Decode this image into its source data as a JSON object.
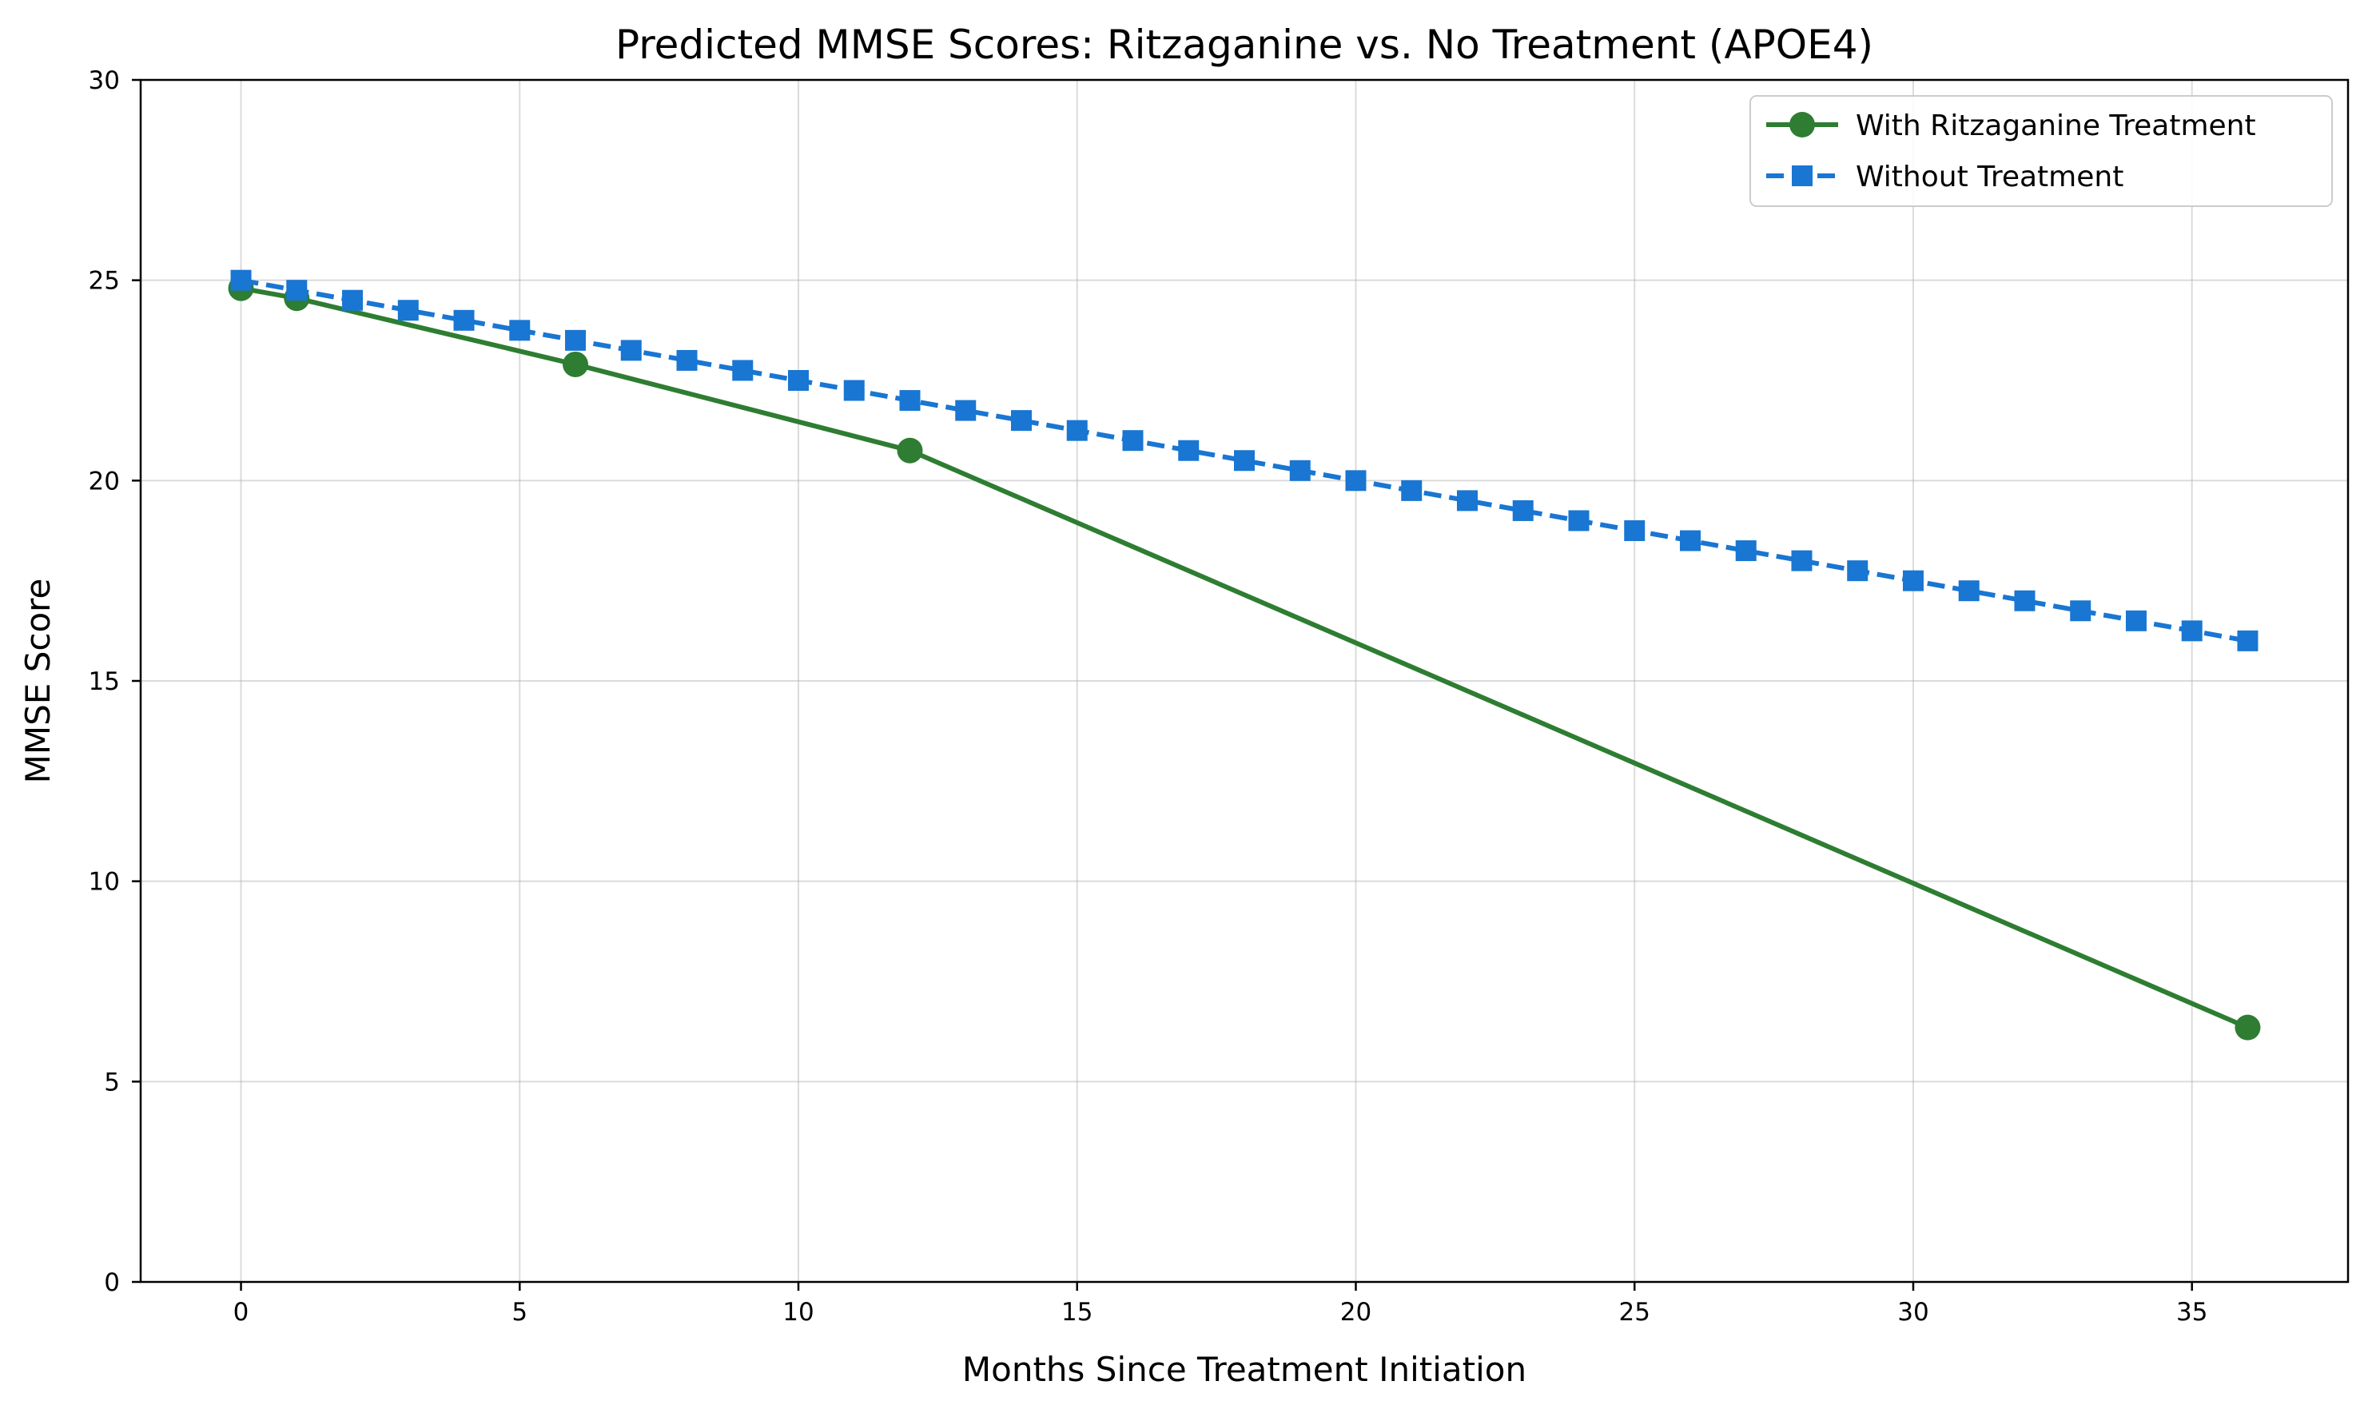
{
  "chart_data": {
    "type": "line",
    "title": "Predicted MMSE Scores: Ritzaganine vs. No Treatment (APOE4)",
    "xlabel": "Months Since Treatment Initiation",
    "ylabel": "MMSE Score",
    "xlim": [
      -1.8,
      37.8
    ],
    "ylim": [
      0,
      30
    ],
    "xticks": [
      0,
      5,
      10,
      15,
      20,
      25,
      30,
      35
    ],
    "yticks": [
      0,
      5,
      10,
      15,
      20,
      25,
      30
    ],
    "grid": true,
    "legend_position": "top-right",
    "series": [
      {
        "name": "With Ritzaganine Treatment",
        "color": "#2e7d32",
        "line_style": "solid",
        "marker": "circle",
        "x": [
          0,
          1,
          6,
          12,
          36
        ],
        "y": [
          24.8,
          24.55,
          22.9,
          20.75,
          6.35
        ]
      },
      {
        "name": "Without Treatment",
        "color": "#1976d2",
        "line_style": "dashed",
        "marker": "square",
        "x": [
          0,
          1,
          2,
          3,
          4,
          5,
          6,
          7,
          8,
          9,
          10,
          11,
          12,
          13,
          14,
          15,
          16,
          17,
          18,
          19,
          20,
          21,
          22,
          23,
          24,
          25,
          26,
          27,
          28,
          29,
          30,
          31,
          32,
          33,
          34,
          35,
          36
        ],
        "y": [
          25,
          24.75,
          24.5,
          24.25,
          24,
          23.75,
          23.5,
          23.25,
          23,
          22.75,
          22.5,
          22.25,
          22,
          21.75,
          21.5,
          21.25,
          21,
          20.75,
          20.5,
          20.25,
          20,
          19.75,
          19.5,
          19.25,
          19,
          18.75,
          18.5,
          18.25,
          18,
          17.75,
          17.5,
          17.25,
          17,
          16.75,
          16.5,
          16.25,
          16
        ]
      }
    ]
  }
}
